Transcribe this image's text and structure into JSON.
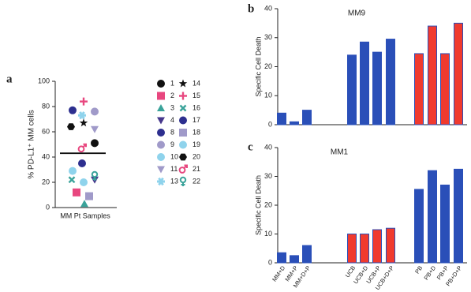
{
  "chart_data": [
    {
      "type": "scatter",
      "panel": "a",
      "y_label": "% PD-L1⁺ MM cells",
      "x_label": "MM Pt Samples",
      "ylim": [
        0,
        100
      ],
      "yticks": [
        0,
        20,
        40,
        60,
        80,
        100
      ],
      "mean_line": 43,
      "legend": "right",
      "series": [
        {
          "name": "1",
          "marker": "circle",
          "color": "#111111",
          "values": [
            51
          ]
        },
        {
          "name": "2",
          "marker": "square",
          "color": "#e8477f",
          "values": [
            12
          ]
        },
        {
          "name": "3",
          "marker": "triangle",
          "color": "#3aa39a",
          "values": [
            3
          ]
        },
        {
          "name": "4",
          "marker": "triangle-down",
          "color": "#46378c",
          "values": [
            22
          ]
        },
        {
          "name": "8",
          "marker": "circle",
          "color": "#2d2f8f",
          "values": [
            77
          ]
        },
        {
          "name": "9",
          "marker": "circle",
          "color": "#a09ac9",
          "values": [
            76
          ]
        },
        {
          "name": "10",
          "marker": "circle",
          "color": "#8fd3ec",
          "values": [
            20
          ]
        },
        {
          "name": "11",
          "marker": "triangle-down",
          "color": "#a09ac9",
          "values": [
            62
          ]
        },
        {
          "name": "13",
          "marker": "asterisk",
          "color": "#8fd3ec",
          "values": [
            73
          ]
        },
        {
          "name": "14",
          "marker": "star",
          "color": "#111111",
          "values": [
            67
          ]
        },
        {
          "name": "15",
          "marker": "plus",
          "color": "#e8477f",
          "values": [
            84
          ]
        },
        {
          "name": "16",
          "marker": "x",
          "color": "#3aa39a",
          "values": [
            22
          ]
        },
        {
          "name": "17",
          "marker": "circle",
          "color": "#2d2f8f",
          "values": [
            35
          ]
        },
        {
          "name": "18",
          "marker": "square",
          "color": "#a09ac9",
          "values": [
            9
          ]
        },
        {
          "name": "19",
          "marker": "circle",
          "color": "#8fd3ec",
          "values": [
            29
          ]
        },
        {
          "name": "20",
          "marker": "hexagon",
          "color": "#111111",
          "values": [
            64
          ]
        },
        {
          "name": "21",
          "marker": "male",
          "color": "#e8477f",
          "values": [
            47
          ]
        },
        {
          "name": "22",
          "marker": "female",
          "color": "#3aa39a",
          "values": [
            25
          ]
        }
      ]
    },
    {
      "type": "bar",
      "panel": "b",
      "title": "MM9",
      "y_label": "Specific Cell Death",
      "ylim": [
        0,
        40
      ],
      "yticks": [
        0,
        10,
        20,
        30,
        40
      ],
      "show_categories": false,
      "categories": [
        "MM+D",
        "MM+P",
        "MM+D+P",
        "UCB",
        "UCB+D",
        "UCB+P",
        "UCB+D+P",
        "PB",
        "PB+D",
        "PB+P",
        "PB+D+P"
      ],
      "values": [
        4,
        1,
        5,
        24,
        28.5,
        25,
        29.5,
        24.5,
        34,
        24.5,
        35
      ],
      "colors": [
        "#2a4fb8",
        "#2a4fb8",
        "#2a4fb8",
        "#2a4fb8",
        "#2a4fb8",
        "#2a4fb8",
        "#2a4fb8",
        "#f03a2e",
        "#f03a2e",
        "#f03a2e",
        "#f03a2e"
      ]
    },
    {
      "type": "bar",
      "panel": "c",
      "title": "MM1",
      "y_label": "Specific Cell Death",
      "ylim": [
        0,
        40
      ],
      "yticks": [
        0,
        10,
        20,
        30,
        40
      ],
      "show_categories": true,
      "categories": [
        "MM+D",
        "MM+P",
        "MM+D+P",
        "UCB",
        "UCB+D",
        "UCB+P",
        "UCB+D+P",
        "PB",
        "PB+D",
        "PB+P",
        "PB+D+P"
      ],
      "values": [
        3.5,
        2.5,
        6,
        10,
        10,
        11.5,
        12,
        25.5,
        32,
        27,
        32.5
      ],
      "colors": [
        "#2a4fb8",
        "#2a4fb8",
        "#2a4fb8",
        "#f03a2e",
        "#f03a2e",
        "#f03a2e",
        "#f03a2e",
        "#2a4fb8",
        "#2a4fb8",
        "#2a4fb8",
        "#2a4fb8"
      ]
    }
  ]
}
